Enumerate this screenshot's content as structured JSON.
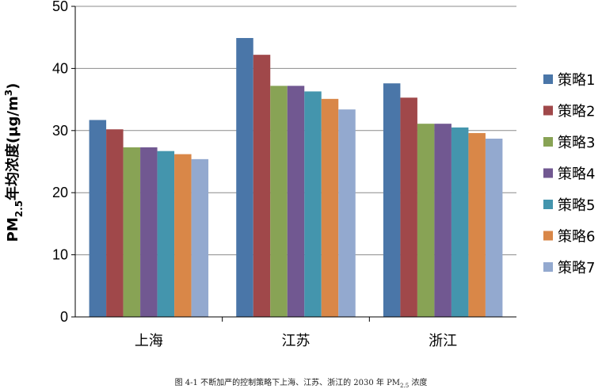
{
  "chart_data": {
    "type": "bar",
    "categories": [
      "上海",
      "江苏",
      "浙江"
    ],
    "series": [
      {
        "name": "策略1",
        "color": "#4a76a8",
        "values": [
          31.7,
          44.9,
          37.6
        ]
      },
      {
        "name": "策略2",
        "color": "#a0484a",
        "values": [
          30.2,
          42.2,
          35.3
        ]
      },
      {
        "name": "策略3",
        "color": "#88a355",
        "values": [
          27.3,
          37.2,
          31.1
        ]
      },
      {
        "name": "策略4",
        "color": "#715891",
        "values": [
          27.3,
          37.2,
          31.1
        ]
      },
      {
        "name": "策略5",
        "color": "#4495ad",
        "values": [
          26.7,
          36.3,
          30.5
        ]
      },
      {
        "name": "策略6",
        "color": "#d98748",
        "values": [
          26.2,
          35.1,
          29.6
        ]
      },
      {
        "name": "策略7",
        "color": "#93a9cf",
        "values": [
          25.4,
          33.4,
          28.7
        ]
      }
    ],
    "ylim": [
      0,
      50
    ],
    "yticks": [
      0,
      10,
      20,
      30,
      40,
      50
    ],
    "grid": true,
    "legend": "right",
    "ylabel": {
      "main": "PM",
      "sub": "2.5",
      "rest": "年均浓度(μg/m",
      "sup": "3",
      "close": ")"
    },
    "caption": {
      "prefix": "图 4-1 不断加严的控制策略下上海、江苏、浙江的 2030 年 PM",
      "sub": "2.5",
      "suffix": " 浓度"
    }
  }
}
